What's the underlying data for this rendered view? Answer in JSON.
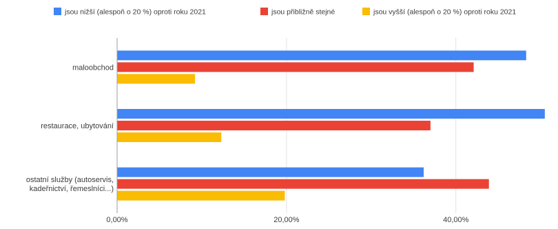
{
  "chart_data": {
    "type": "bar",
    "orientation": "horizontal",
    "title": "",
    "xlabel": "",
    "ylabel": "",
    "categories": [
      [
        "maloobchod"
      ],
      [
        "restaurace, ubytování"
      ],
      [
        "ostatní služby (autoservis,",
        "kadeřnictví, řemeslníci...)"
      ]
    ],
    "series": [
      {
        "name": "jsou nižší (alespoň o 20 %) oproti roku 2021",
        "color": "#4285f4",
        "values": [
          48.3,
          50.5,
          36.2
        ]
      },
      {
        "name": "jsou přibližně stejné",
        "color": "#ea4335",
        "values": [
          42.1,
          37.0,
          43.9
        ]
      },
      {
        "name": "jsou vyšší (alespoň o 20 %) oproti roku 2021",
        "color": "#fbbc04",
        "values": [
          9.2,
          12.3,
          19.8
        ]
      }
    ],
    "xlim": [
      0,
      51
    ],
    "xticks": [
      0,
      20,
      40
    ],
    "xtick_labels": [
      "0,00%",
      "20,00%",
      "40,00%"
    ],
    "grid": true,
    "legend_position": "top"
  }
}
